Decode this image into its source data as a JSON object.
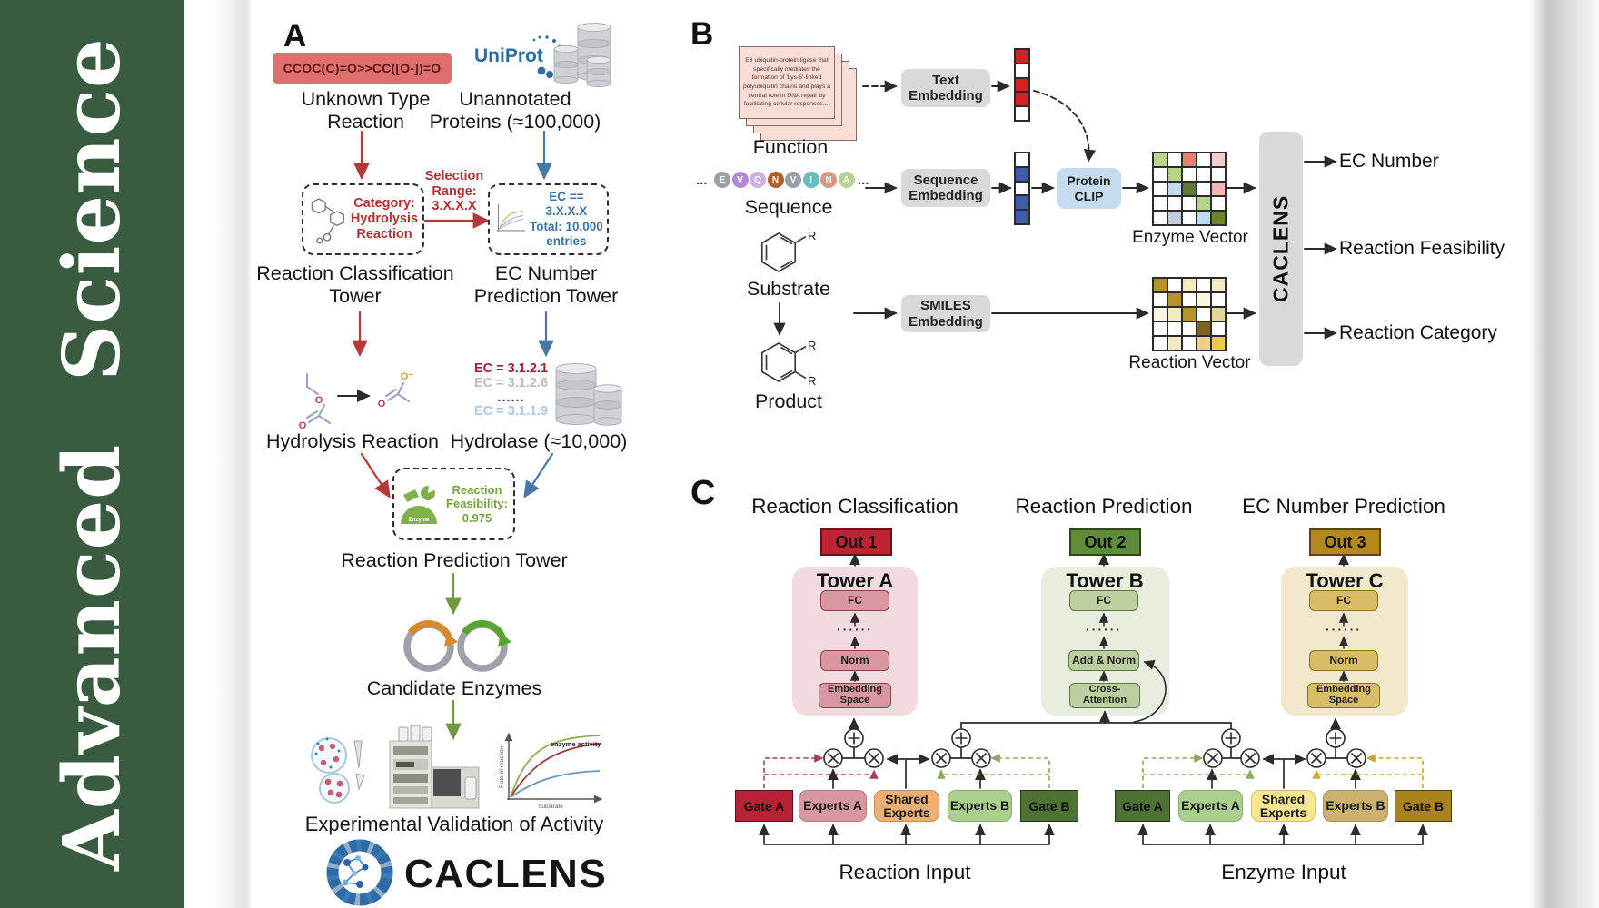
{
  "journal": {
    "title": "Advanced Science"
  },
  "palette": {
    "journal_green": "#395b3f",
    "smiles_red_bg": "#e06e6e",
    "red_accent": "#b23a3a",
    "blue_accent": "#4878a8",
    "green_accent": "#71973c",
    "uniprot_blue": "#2d6da3",
    "gray_box": "#d9d9d9",
    "protein_clip_blue": "#c7dbf0",
    "out1_red": "#bf2433",
    "out2_green": "#5e8c38",
    "out3_gold": "#b3891c",
    "tower_a_bg": "#f3dade",
    "tower_a_box": "#d997a2",
    "tower_b_bg": "#e7eedd",
    "tower_b_box": "#bccf9f",
    "tower_c_bg": "#f2e9cd",
    "tower_c_box": "#d9bd66",
    "gate_red": "#b92134",
    "experts_pink": "#d997a2",
    "shared_orange": "#efae72",
    "experts_green": "#abd08e",
    "gate_green": "#4e7233",
    "shared_yellow": "#f8e78f",
    "experts_tan": "#cdb26e",
    "gate_gold": "#a9841c"
  },
  "panelA": {
    "label": "A",
    "smiles": "CCOC(C)=O>>CC([O-])=O",
    "unknown_reaction": "Unknown Type Reaction",
    "uniprot_wordmark": "UniProt",
    "unannotated_proteins": "Unannotated Proteins (≈100,000)",
    "selection_range": "Selection Range: 3.X.X.X",
    "category_label": "Category: Hydrolysis Reaction",
    "ec_filter_label": "EC == 3.X.X.X Total: 10,000 entries",
    "classification_tower": "Reaction Classification Tower",
    "ec_prediction_tower": "EC Number Prediction Tower",
    "ec_list": [
      "EC = 3.1.2.1",
      "EC = 3.1.2.6",
      "......",
      "EC = 3.1.1.9"
    ],
    "hydrolysis_reaction": "Hydrolysis Reaction",
    "hydrolase": "Hydrolase (≈10,000)",
    "enzyme_icon_label": "Enzyme",
    "reaction_feasibility": "Reaction Feasibility: 0.975",
    "reaction_prediction_tower": "Reaction Prediction Tower",
    "candidate_enzymes": "Candidate Enzymes",
    "experimental_validation": "Experimental Validation of Activity",
    "logo_wordmark": "CACLENS",
    "activity_plot": {
      "ylabel": "Rate of reaction",
      "xlabel": "Substrate",
      "annotation": "enzyme activity"
    },
    "atoms": {
      "ester_o": "O",
      "ester_carbonyl_o": "O",
      "acetate_o_minus": "O⁻",
      "acetate_carbonyl_o": "O"
    }
  },
  "panelB": {
    "label": "B",
    "function_card_text": "E3 ubiquitin-protein ligase that specifically mediates the formation of 'Lys-6'-linked polyubiquitin chains and plays a central role in DNA repair by facilitating cellular responses....",
    "function_label": "Function",
    "ellipsis": "...",
    "residues": [
      {
        "letter": "E",
        "color": "#9aa0a6"
      },
      {
        "letter": "V",
        "color": "#b48ad6"
      },
      {
        "letter": "Q",
        "color": "#cdb0e3"
      },
      {
        "letter": "N",
        "color": "#ad6327"
      },
      {
        "letter": "V",
        "color": "#9aa0a6"
      },
      {
        "letter": "I",
        "color": "#5fc0bd"
      },
      {
        "letter": "N",
        "color": "#e59183"
      },
      {
        "letter": "A",
        "color": "#b6d38f"
      }
    ],
    "sequence_label": "Sequence",
    "text_embedding": "Text Embedding",
    "sequence_embedding": "Sequence Embedding",
    "smiles_embedding": "SMILES Embedding",
    "protein_clip": "Protein CLIP",
    "substrate_label": "Substrate",
    "product_label": "Product",
    "r_group": "R",
    "text_vector_cells": [
      "#d42121",
      "#ffffff",
      "#d42121",
      "#d42121",
      "#ffffff"
    ],
    "sequence_vector_cells": [
      "#ffffff",
      "#3d5ea6",
      "#ffffff",
      "#3d5ea6",
      "#3d5ea6"
    ],
    "enzyme_vector": {
      "label": "Enzyme Vector",
      "cells": [
        "#b7d48d",
        "#ffffff",
        "#e87f74",
        "#ffffff",
        "#f6cdcd",
        "#ffffff",
        "#b7d48d",
        "#ffffff",
        "#ffffff",
        "#ffffff",
        "#ffffff",
        "#c7daef",
        "#5e7b2f",
        "#ffffff",
        "#f2b6b6",
        "#ffffff",
        "#ffffff",
        "#ffffff",
        "#b7d48d",
        "#ffffff",
        "#ffffff",
        "#c2cedb",
        "#ffffff",
        "#badbf2",
        "#6d8531"
      ]
    },
    "reaction_vector": {
      "label": "Reaction Vector",
      "cells": [
        "#b8912b",
        "#ffffff",
        "#f4ebc4",
        "#ffffff",
        "#f4ebc4",
        "#ffffff",
        "#b8912b",
        "#ffffff",
        "#faf5e0",
        "#ffffff",
        "#faf5e0",
        "#f4ebc4",
        "#b8912b",
        "#ffffff",
        "#e7d49a",
        "#ffffff",
        "#ffffff",
        "#ffffff",
        "#7c661c",
        "#ffffff",
        "#ffffff",
        "#f4ebc4",
        "#ffffff",
        "#eed37e",
        "#e9c94e"
      ]
    },
    "caclens_box": "CACLENS",
    "outputs": [
      "EC Number",
      "Reaction Feasibility",
      "Reaction Category"
    ]
  },
  "panelC": {
    "label": "C",
    "headings": [
      "Reaction Classification",
      "Reaction Prediction",
      "EC Number Prediction"
    ],
    "outs": [
      "Out 1",
      "Out 2",
      "Out 3"
    ],
    "towers": [
      {
        "title": "Tower A",
        "top": "FC",
        "dots": "······",
        "mid": "Norm",
        "bottom": "Embedding Space"
      },
      {
        "title": "Tower B",
        "top": "FC",
        "dots": "······",
        "mid": "Add & Norm",
        "bottom": "Cross-Attention"
      },
      {
        "title": "Tower C",
        "top": "FC",
        "dots": "······",
        "mid": "Norm",
        "bottom": "Embedding Space"
      }
    ],
    "reaction_group": {
      "gate_a": "Gate A",
      "experts_a": "Experts A",
      "shared_experts": "Shared Experts",
      "experts_b": "Experts B",
      "gate_b": "Gate B",
      "input_label": "Reaction Input"
    },
    "enzyme_group": {
      "gate_a": "Gate A",
      "experts_a": "Experts A",
      "shared_experts": "Shared Experts",
      "experts_b": "Experts B",
      "gate_b": "Gate B",
      "input_label": "Enzyme Input"
    }
  }
}
